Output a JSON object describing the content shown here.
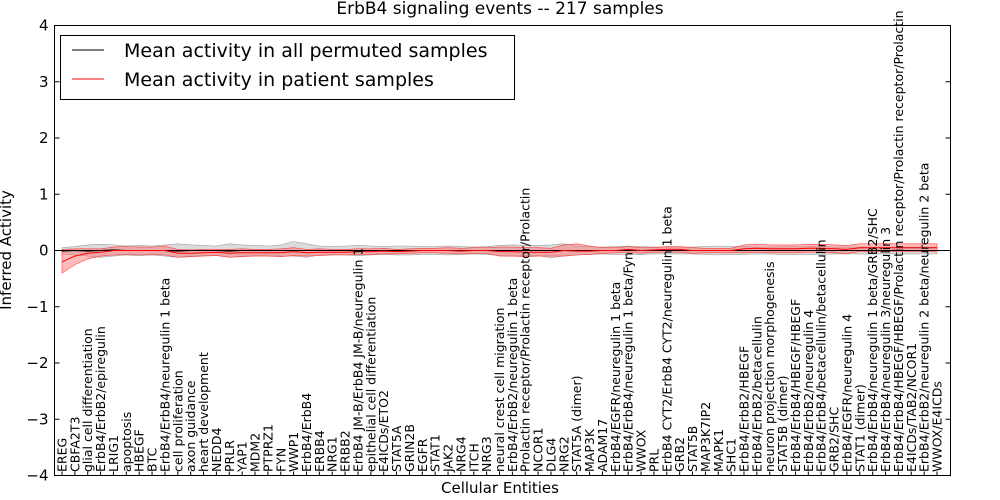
{
  "chart_data": {
    "type": "line",
    "title": "ErbB4 signaling events -- 217 samples",
    "xlabel": "Cellular Entities",
    "ylabel": "Inferred Activity",
    "ylim": [
      -4,
      4
    ],
    "yticks": [
      -4,
      -3,
      -2,
      -1,
      0,
      1,
      2,
      3,
      4
    ],
    "grid": false,
    "legend_position": "top-left",
    "categories": [
      "EREG",
      "CBFA2T3",
      "glial cell differentiation",
      "ErbB4/ErbB2/epiregulin",
      "LRIG1",
      "apoptosis",
      "HBEGF",
      "BTC",
      "ErbB4/ErbB4/neuregulin 1 beta",
      "cell proliferation",
      "axon guidance",
      "heart development",
      "NEDD4",
      "PRLR",
      "YAP1",
      "MDM2",
      "PTPRZ1",
      "FYN",
      "WWP1",
      "ErbB4/ErbB4",
      "ERBB4",
      "NRG1",
      "ERBB2",
      "ErbB4 JM-B/ErbB4 JM-B/neuregulin 1",
      "epithelial cell differentiation",
      "E4ICDs/ETO2",
      "STAT5A",
      "GRIN2B",
      "EGFR",
      "STAT1",
      "JAK2",
      "NRG4",
      "ITCH",
      "NRG3",
      "neural crest cell migration",
      "ErbB4/ErbB2/neuregulin 1 beta",
      "Prolactin receptor/Prolactin receptor/Prolactin",
      "NCOR1",
      "DLG4",
      "NRG2",
      "STAT5A (dimer)",
      "MAP3K",
      "ADAM17",
      "ErbB4/EGFR/neuregulin 1 beta",
      "ErbB4/ErbB4/neuregulin 1 beta/Fyn",
      "WWOX",
      "PRL",
      "ErbB4 CYT2/ErbB4 CYT2/neuregulin 1 beta",
      "GRB2",
      "STAT5B",
      "MAP3K7IP2",
      "MAPK1",
      "SHC1",
      "ErbB4/ErbB2/HBEGF",
      "ErbB4/ErbB2/betacellulin",
      "neuron projection morphogenesis",
      "STAT5B (dimer)",
      "ErbB4/ErbB4/HBEGF/HBEGF",
      "ErbB4/ErbB2/neuregulin 4",
      "ErbB4/ErbB4/betacellulin/betacellulin",
      "GRB2/SHC",
      "ErbB4/EGFR/neuregulin 4",
      "STAT1 (dimer)",
      "ErbB4/ErbB4/neuregulin 1 beta/GRB2/SHC",
      "ErbB4/ErbB4/neuregulin 3/neuregulin 3",
      "ErbB4/ErbB4/HBEGF/HBEGF/Prolactin receptor/Prolactin receptor/Prolactin",
      "E4ICDs/TAB2/NCOR1",
      "ErbB4/ErbB2/neuregulin 2 beta/neuregulin 2 beta",
      "WWOX/E4ICDs"
    ],
    "series": [
      {
        "name": "Mean activity in all permuted samples",
        "color": "#000000",
        "values": [
          -0.01,
          0.0,
          -0.01,
          0.0,
          0.01,
          0.0,
          0.0,
          0.0,
          0.0,
          -0.01,
          0.0,
          0.0,
          0.0,
          -0.01,
          0.0,
          0.0,
          0.0,
          0.0,
          0.0,
          0.0,
          0.0,
          0.0,
          0.0,
          0.0,
          0.0,
          0.0,
          0.0,
          0.0,
          0.0,
          0.0,
          0.0,
          0.0,
          0.0,
          0.0,
          0.0,
          0.0,
          0.0,
          0.0,
          0.0,
          0.0,
          0.0,
          0.0,
          0.0,
          0.0,
          0.0,
          0.0,
          0.0,
          0.0,
          0.0,
          0.0,
          0.0,
          0.0,
          0.0,
          0.0,
          0.0,
          0.0,
          0.0,
          0.0,
          0.0,
          0.0,
          0.0,
          0.0,
          0.0,
          0.0,
          0.0,
          0.0,
          0.0,
          0.0,
          0.0
        ],
        "lower": [
          -0.07,
          -0.08,
          -0.1,
          -0.12,
          -0.1,
          -0.08,
          -0.09,
          -0.08,
          -0.1,
          -0.12,
          -0.1,
          -0.09,
          -0.08,
          -0.12,
          -0.1,
          -0.09,
          -0.08,
          -0.1,
          -0.1,
          -0.12,
          -0.08,
          -0.07,
          -0.08,
          -0.09,
          -0.08,
          -0.07,
          -0.08,
          -0.08,
          -0.07,
          -0.07,
          -0.08,
          -0.07,
          -0.06,
          -0.07,
          -0.09,
          -0.1,
          -0.09,
          -0.09,
          -0.13,
          -0.1,
          -0.08,
          -0.07,
          -0.06,
          -0.07,
          -0.08,
          -0.07,
          -0.06,
          -0.06,
          -0.06,
          -0.06,
          -0.07,
          -0.08,
          -0.07,
          -0.07,
          -0.06,
          -0.06,
          -0.07,
          -0.07,
          -0.07,
          -0.07,
          -0.06,
          -0.06,
          -0.06,
          -0.06,
          -0.06,
          -0.06,
          -0.06,
          -0.06,
          -0.06
        ],
        "upper": [
          0.05,
          0.07,
          0.1,
          0.11,
          0.1,
          0.08,
          0.09,
          0.08,
          0.1,
          0.12,
          0.1,
          0.09,
          0.08,
          0.12,
          0.1,
          0.09,
          0.08,
          0.1,
          0.16,
          0.12,
          0.08,
          0.07,
          0.08,
          0.09,
          0.08,
          0.07,
          0.08,
          0.08,
          0.07,
          0.07,
          0.08,
          0.07,
          0.06,
          0.07,
          0.09,
          0.1,
          0.09,
          0.09,
          0.1,
          0.12,
          0.08,
          0.07,
          0.06,
          0.07,
          0.08,
          0.07,
          0.06,
          0.06,
          0.06,
          0.06,
          0.07,
          0.08,
          0.07,
          0.07,
          0.06,
          0.06,
          0.07,
          0.07,
          0.07,
          0.07,
          0.06,
          0.06,
          0.06,
          0.06,
          0.06,
          0.06,
          0.06,
          0.06,
          0.06
        ]
      },
      {
        "name": "Mean activity in patient samples",
        "color": "#ff0000",
        "values": [
          -0.2,
          -0.1,
          -0.05,
          -0.03,
          0.0,
          0.0,
          0.0,
          0.0,
          0.0,
          -0.05,
          -0.05,
          -0.04,
          -0.03,
          -0.05,
          -0.04,
          -0.04,
          -0.04,
          -0.04,
          -0.02,
          -0.04,
          -0.03,
          -0.03,
          -0.03,
          -0.02,
          -0.02,
          -0.01,
          -0.02,
          -0.01,
          0.0,
          0.0,
          0.0,
          -0.01,
          0.0,
          0.0,
          -0.02,
          -0.02,
          -0.03,
          -0.03,
          -0.03,
          0.0,
          -0.01,
          -0.01,
          0.0,
          0.0,
          0.02,
          0.0,
          0.01,
          0.02,
          0.02,
          0.0,
          0.0,
          0.0,
          0.0,
          0.03,
          0.04,
          0.03,
          0.03,
          0.03,
          0.04,
          0.04,
          0.03,
          0.02,
          0.05,
          0.05,
          0.05,
          0.05,
          0.05,
          0.05,
          0.05
        ],
        "lower": [
          -0.4,
          -0.25,
          -0.15,
          -0.1,
          -0.08,
          -0.07,
          -0.08,
          -0.07,
          -0.08,
          -0.12,
          -0.11,
          -0.1,
          -0.09,
          -0.12,
          -0.11,
          -0.1,
          -0.1,
          -0.11,
          -0.09,
          -0.1,
          -0.09,
          -0.08,
          -0.08,
          -0.07,
          -0.07,
          -0.06,
          -0.06,
          -0.05,
          -0.04,
          -0.04,
          -0.05,
          -0.06,
          -0.05,
          -0.05,
          -0.1,
          -0.1,
          -0.11,
          -0.1,
          -0.1,
          -0.1,
          -0.08,
          -0.07,
          -0.05,
          -0.04,
          -0.03,
          -0.05,
          -0.03,
          -0.03,
          -0.03,
          -0.05,
          -0.04,
          -0.04,
          -0.04,
          -0.04,
          -0.03,
          -0.04,
          -0.04,
          -0.04,
          -0.03,
          -0.03,
          -0.04,
          -0.05,
          -0.02,
          -0.02,
          -0.02,
          -0.02,
          -0.02,
          -0.02,
          -0.02
        ],
        "upper": [
          0.02,
          0.03,
          0.03,
          0.03,
          0.06,
          0.07,
          0.06,
          0.06,
          0.08,
          0.02,
          0.01,
          0.02,
          0.02,
          0.02,
          0.03,
          0.02,
          0.02,
          0.03,
          0.05,
          0.02,
          0.03,
          0.02,
          0.02,
          0.03,
          0.03,
          0.04,
          0.02,
          0.03,
          0.04,
          0.04,
          0.05,
          0.04,
          0.05,
          0.05,
          0.06,
          0.06,
          0.05,
          0.05,
          0.04,
          0.1,
          0.12,
          0.08,
          0.05,
          0.05,
          0.07,
          0.05,
          0.05,
          0.07,
          0.07,
          0.05,
          0.04,
          0.04,
          0.04,
          0.1,
          0.11,
          0.1,
          0.1,
          0.1,
          0.11,
          0.11,
          0.1,
          0.09,
          0.12,
          0.12,
          0.12,
          0.12,
          0.12,
          0.12,
          0.12
        ]
      }
    ]
  }
}
